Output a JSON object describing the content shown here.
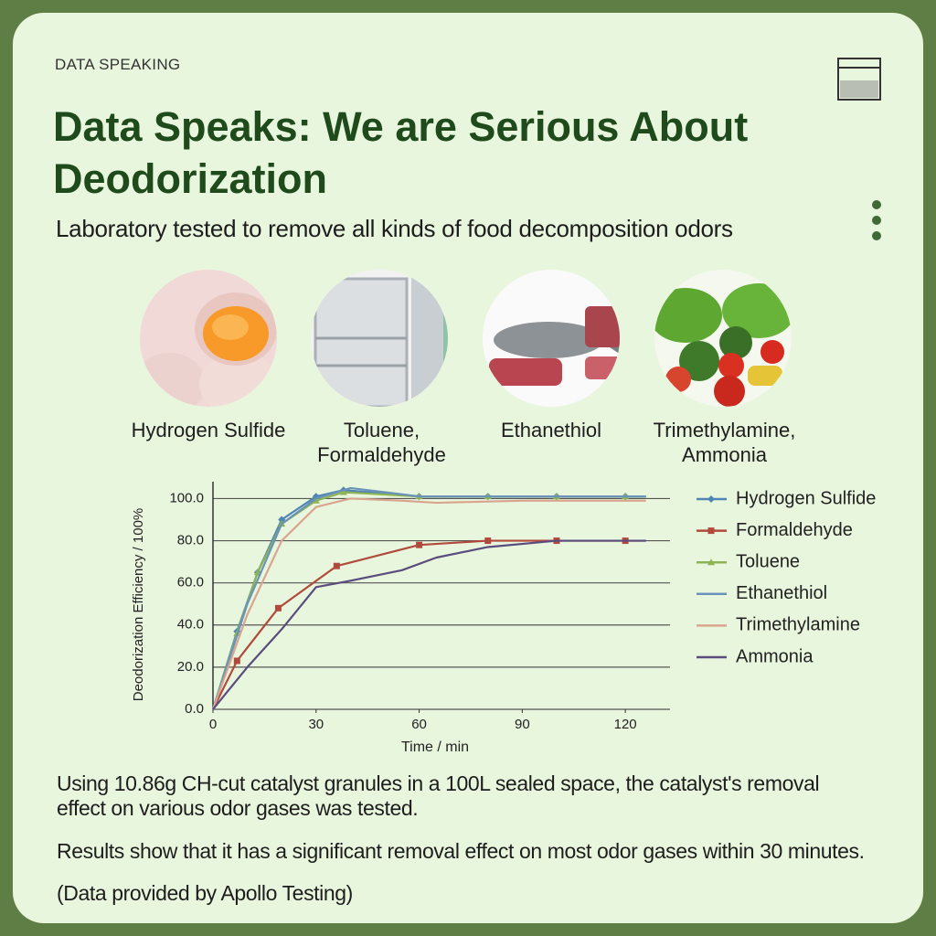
{
  "header": {
    "eyebrow": "DATA SPEAKING",
    "title": "Data Speaks: We are Serious About Deodorization",
    "subtitle": "Laboratory tested to remove all kinds of food decomposition odors"
  },
  "sources": [
    {
      "label": "Hydrogen Sulfide"
    },
    {
      "label": "Toluene, Formaldehyde"
    },
    {
      "label": "Ethanethiol"
    },
    {
      "label": "Trimethylamine, Ammonia"
    }
  ],
  "chart_data": {
    "type": "line",
    "x_label": "Time / min",
    "y_label": "Deodorization Efficiency / 100%",
    "xlim": [
      0,
      133
    ],
    "ylim": [
      0,
      108
    ],
    "xticks": [
      0,
      30,
      60,
      90,
      120
    ],
    "yticks": [
      {
        "value": 0,
        "label": "0.0"
      },
      {
        "value": 20,
        "label": "20.0"
      },
      {
        "value": 40,
        "label": "40.0"
      },
      {
        "value": 60,
        "label": "60.0"
      },
      {
        "value": 80,
        "label": "80.0"
      },
      {
        "value": 100,
        "label": "100.0"
      }
    ],
    "grid": true,
    "legend": "right",
    "series": [
      {
        "name": "Hydrogen Sulfide",
        "color": "#4f84b3",
        "marker": "diamond",
        "x": [
          0,
          7,
          13,
          20,
          30,
          38,
          60,
          80,
          100,
          120,
          126
        ],
        "values": [
          0,
          37,
          65,
          90,
          101,
          104,
          101,
          101,
          101,
          101,
          101
        ]
      },
      {
        "name": "Formaldehyde",
        "color": "#b04a3c",
        "marker": "square",
        "x": [
          0,
          7,
          19,
          36,
          60,
          80,
          100,
          120,
          126
        ],
        "values": [
          0,
          23,
          48,
          68,
          78,
          80,
          80,
          80,
          80
        ]
      },
      {
        "name": "Toluene",
        "color": "#8db352",
        "marker": "triangle",
        "x": [
          0,
          7,
          13,
          20,
          30,
          38,
          60,
          80,
          100,
          120,
          126
        ],
        "values": [
          0,
          36,
          65,
          88,
          99,
          103,
          101,
          101,
          101,
          101,
          101
        ]
      },
      {
        "name": "Ethanethiol",
        "color": "#6a93ba",
        "marker": "none",
        "x": [
          0,
          10,
          20,
          30,
          40,
          50,
          60,
          90,
          126
        ],
        "values": [
          0,
          50,
          88,
          100,
          105,
          103,
          101,
          101,
          101
        ]
      },
      {
        "name": "Trimethylamine",
        "color": "#d9a58e",
        "marker": "none",
        "x": [
          0,
          10,
          20,
          30,
          40,
          55,
          65,
          90,
          126
        ],
        "values": [
          0,
          45,
          80,
          96,
          100,
          99,
          98,
          99,
          99
        ]
      },
      {
        "name": "Ammonia",
        "color": "#5b4c7e",
        "marker": "none",
        "x": [
          0,
          10,
          20,
          30,
          40,
          55,
          65,
          80,
          100,
          126
        ],
        "values": [
          0,
          20,
          38,
          58,
          61,
          66,
          72,
          77,
          80,
          80
        ]
      }
    ]
  },
  "footer": {
    "method": "Using 10.86g CH-cut catalyst granules in a 100L sealed space, the catalyst's removal effect on various odor gases was tested.",
    "result": "Results show that it has a significant removal effect on most odor gases within 30 minutes.",
    "credit": "(Data provided by Apollo Testing)"
  }
}
